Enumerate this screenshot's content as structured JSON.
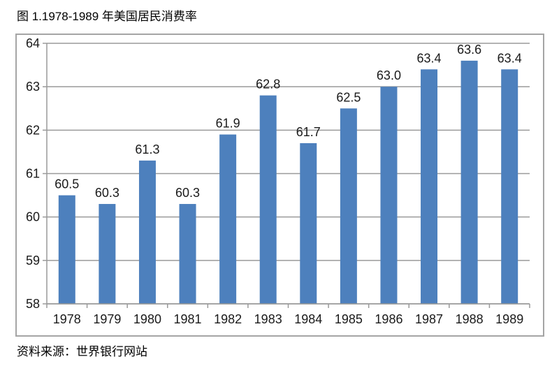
{
  "title": "图 1.1978-1989 年美国居民消费率",
  "source": "资料来源：世界银行网站",
  "chart_data": {
    "type": "bar",
    "title": "图 1.1978-1989 年美国居民消费率",
    "categories": [
      "1978",
      "1979",
      "1980",
      "1981",
      "1982",
      "1983",
      "1984",
      "1985",
      "1986",
      "1987",
      "1988",
      "1989"
    ],
    "values": [
      60.5,
      60.3,
      61.3,
      60.3,
      61.9,
      62.8,
      61.7,
      62.5,
      63.0,
      63.4,
      63.6,
      63.4
    ],
    "value_labels": [
      "60.5",
      "60.3",
      "61.3",
      "60.3",
      "61.9",
      "62.8",
      "61.7",
      "62.5",
      "63.0",
      "63.4",
      "63.6",
      "63.4"
    ],
    "xlabel": "",
    "ylabel": "",
    "ylim": [
      58,
      64
    ],
    "ytick_step": 1,
    "grid": true,
    "legend": false,
    "bar_color": "#4d80bd",
    "gridline_color": "#9a9a9a",
    "axis_color": "#9a9a9a",
    "label_color": "#1a1a1a",
    "frame_color": "#a5a5a5"
  }
}
